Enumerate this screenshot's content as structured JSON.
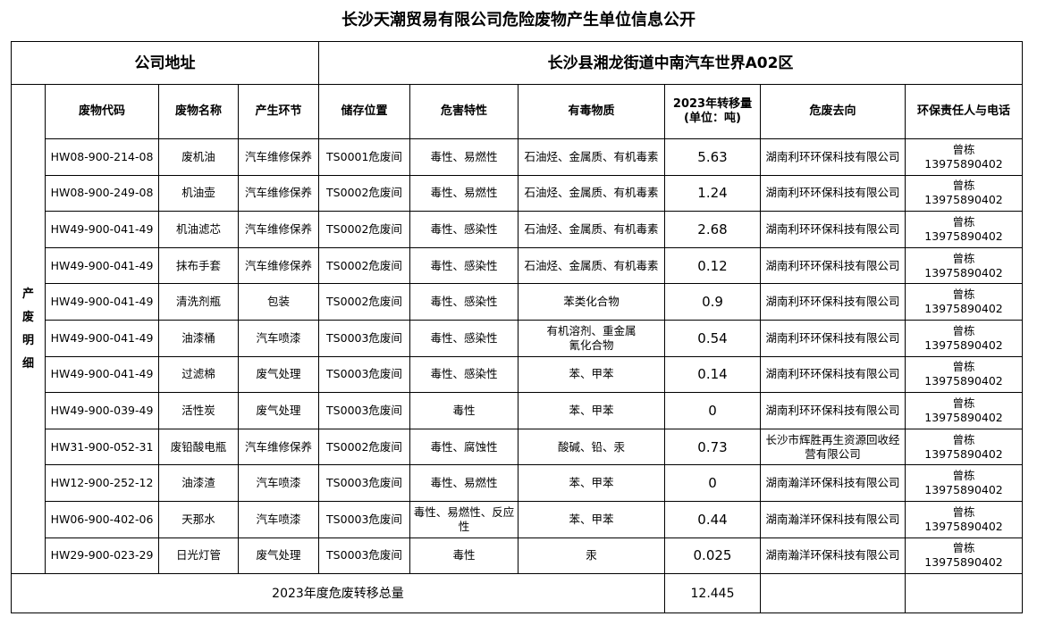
{
  "title": "长沙天潮贸易有限公司危险废物产生单位信息公开",
  "address": {
    "label": "公司地址",
    "value": "长沙县湘龙街道中南汽车世界A02区"
  },
  "section_label": "产废明细",
  "headers": [
    "废物代码",
    "废物名称",
    "产生环节",
    "储存位置",
    "危害特性",
    "有毒物质",
    "2023年转移量\n(单位：吨)",
    "危废去向",
    "环保责任人与电话"
  ],
  "rows": [
    [
      "HW08-900-214-08",
      "废机油",
      "汽车维修保养",
      "TS0001危废间",
      "毒性、易燃性",
      "石油烃、金属质、有机毒素",
      "5.63",
      "湖南利环环保科技有限公司",
      "曾栋\n13975890402"
    ],
    [
      "HW08-900-249-08",
      "机油壶",
      "汽车维修保养",
      "TS0002危废间",
      "毒性、易燃性",
      "石油烃、金属质、有机毒素",
      "1.24",
      "湖南利环环保科技有限公司",
      "曾栋\n13975890402"
    ],
    [
      "HW49-900-041-49",
      "机油滤芯",
      "汽车维修保养",
      "TS0002危废间",
      "毒性、感染性",
      "石油烃、金属质、有机毒素",
      "2.68",
      "湖南利环环保科技有限公司",
      "曾栋\n13975890402"
    ],
    [
      "HW49-900-041-49",
      "抹布手套",
      "汽车维修保养",
      "TS0002危废间",
      "毒性、感染性",
      "石油烃、金属质、有机毒素",
      "0.12",
      "湖南利环环保科技有限公司",
      "曾栋\n13975890402"
    ],
    [
      "HW49-900-041-49",
      "清洗剂瓶",
      "包装",
      "TS0002危废间",
      "毒性、感染性",
      "苯类化合物",
      "0.9",
      "湖南利环环保科技有限公司",
      "曾栋\n13975890402"
    ],
    [
      "HW49-900-041-49",
      "油漆桶",
      "汽车喷漆",
      "TS0003危废间",
      "毒性、感染性",
      "有机溶剂、重金属\n氰化合物",
      "0.54",
      "湖南利环环保科技有限公司",
      "曾栋\n13975890402"
    ],
    [
      "HW49-900-041-49",
      "过滤棉",
      "废气处理",
      "TS0003危废间",
      "毒性、感染性",
      "苯、甲苯",
      "0.14",
      "湖南利环环保科技有限公司",
      "曾栋\n13975890402"
    ],
    [
      "HW49-900-039-49",
      "活性炭",
      "废气处理",
      "TS0003危废间",
      "毒性",
      "苯、甲苯",
      "0",
      "湖南利环环保科技有限公司",
      "曾栋\n13975890402"
    ],
    [
      "HW31-900-052-31",
      "废铅酸电瓶",
      "汽车维修保养",
      "TS0002危废间",
      "毒性、腐蚀性",
      "酸碱、铅、汞",
      "0.73",
      "长沙市辉胜再生资源回收经营有限公司",
      "曾栋\n13975890402"
    ],
    [
      "HW12-900-252-12",
      "油漆渣",
      "汽车喷漆",
      "TS0003危废间",
      "毒性、易燃性",
      "苯、甲苯",
      "0",
      "湖南瀚洋环保科技有限公司",
      "曾栋\n13975890402"
    ],
    [
      "HW06-900-402-06",
      "天那水",
      "汽车喷漆",
      "TS0003危废间",
      "毒性、易燃性、反应性",
      "苯、甲苯",
      "0.44",
      "湖南瀚洋环保科技有限公司",
      "曾栋\n13975890402"
    ],
    [
      "HW29-900-023-29",
      "日光灯管",
      "废气处理",
      "TS0003危废间",
      "毒性",
      "汞",
      "0.025",
      "湖南瀚洋环保科技有限公司",
      "曾栋\n13975890402"
    ]
  ],
  "total": {
    "label": "2023年度危废转移总量",
    "value": "12.445"
  }
}
